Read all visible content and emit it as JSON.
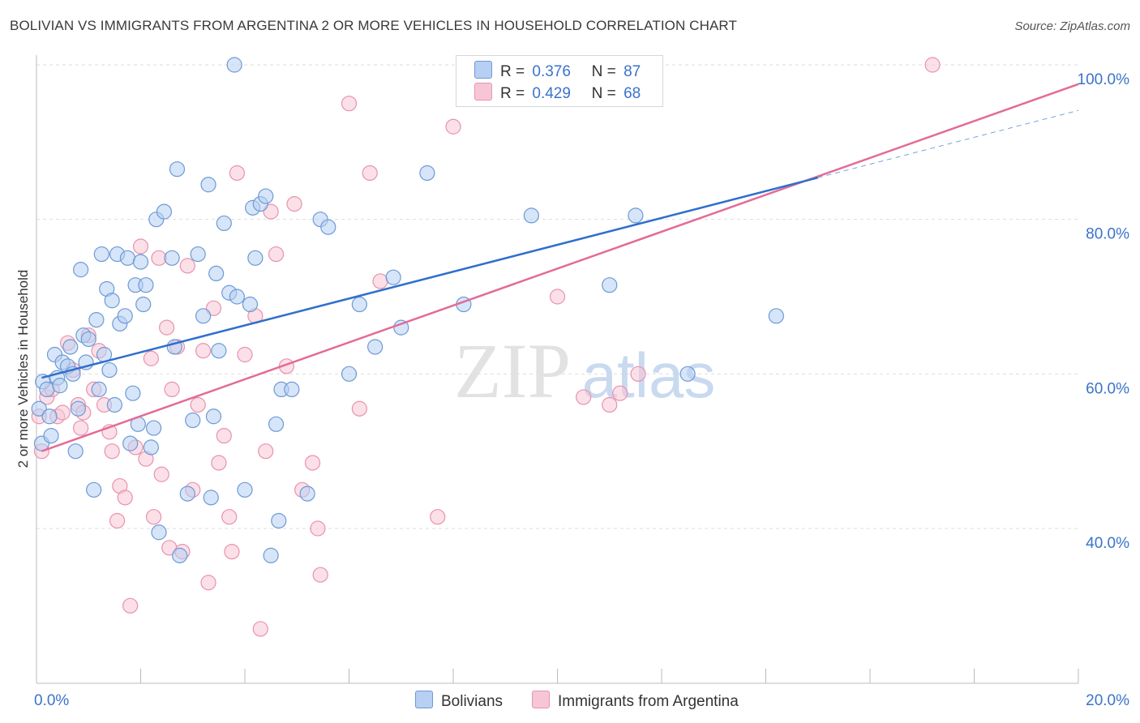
{
  "title": "BOLIVIAN VS IMMIGRANTS FROM ARGENTINA 2 OR MORE VEHICLES IN HOUSEHOLD CORRELATION CHART",
  "source": "Source: ZipAtlas.com",
  "watermark": {
    "zip": "ZIP",
    "atlas": "atlas"
  },
  "legend": {
    "r_label": "R =",
    "n_label": "N =",
    "bolivians": {
      "r": "0.376",
      "n": "87"
    },
    "argentina": {
      "r": "0.429",
      "n": "68"
    }
  },
  "bottom_legend": {
    "bolivians": "Bolivians",
    "argentina": "Immigrants from Argentina"
  },
  "colors": {
    "blue_fill": "#b7cff2",
    "blue_stroke": "#6c9ad6",
    "blue_line": "#2f6fcc",
    "pink_fill": "#f7c6d6",
    "pink_stroke": "#e892ae",
    "pink_line": "#e36b96",
    "tick_label": "#3b73c9",
    "grid": "#dddddd"
  },
  "chart_data": {
    "type": "scatter",
    "title": "BOLIVIAN VS IMMIGRANTS FROM ARGENTINA 2 OR MORE VEHICLES IN HOUSEHOLD CORRELATION CHART",
    "xlabel": "",
    "ylabel": "2 or more Vehicles in Household",
    "xlim": [
      0,
      20
    ],
    "ylim": [
      20,
      101
    ],
    "x_tick_labels": [
      {
        "x": 0,
        "label": "0.0%"
      },
      {
        "x": 20,
        "label": "20.0%"
      }
    ],
    "y_tick_labels": [
      {
        "y": 100,
        "label": "100.0%"
      },
      {
        "y": 80,
        "label": "80.0%"
      },
      {
        "y": 60,
        "label": "60.0%"
      },
      {
        "y": 40,
        "label": "40.0%"
      }
    ],
    "y_gridlines": [
      40,
      60,
      80,
      100
    ],
    "grid": true,
    "legend_position": "top-center",
    "series": [
      {
        "name": "Bolivians",
        "color": "#6c9ad6",
        "trend": {
          "x0": 0.1,
          "y0": 59.5,
          "x1": 15.0,
          "y1": 85.4,
          "dashed_to_x": 20,
          "dashed_to_y": 94.1
        },
        "points": [
          [
            0.05,
            55.5
          ],
          [
            0.1,
            51.0
          ],
          [
            0.12,
            59.0
          ],
          [
            0.2,
            58.0
          ],
          [
            0.25,
            54.5
          ],
          [
            0.28,
            52.0
          ],
          [
            0.35,
            62.5
          ],
          [
            0.4,
            59.5
          ],
          [
            0.45,
            58.5
          ],
          [
            0.5,
            61.5
          ],
          [
            0.6,
            61.0
          ],
          [
            0.65,
            63.5
          ],
          [
            0.7,
            60.0
          ],
          [
            0.75,
            50.0
          ],
          [
            0.8,
            55.5
          ],
          [
            0.85,
            73.5
          ],
          [
            0.9,
            65.0
          ],
          [
            0.95,
            61.5
          ],
          [
            1.0,
            64.5
          ],
          [
            1.1,
            45.0
          ],
          [
            1.15,
            67.0
          ],
          [
            1.2,
            58.0
          ],
          [
            1.25,
            75.5
          ],
          [
            1.3,
            62.5
          ],
          [
            1.35,
            71.0
          ],
          [
            1.4,
            60.5
          ],
          [
            1.45,
            69.5
          ],
          [
            1.5,
            56.0
          ],
          [
            1.55,
            75.5
          ],
          [
            1.6,
            66.5
          ],
          [
            1.7,
            67.5
          ],
          [
            1.75,
            75.0
          ],
          [
            1.8,
            51.0
          ],
          [
            1.85,
            57.5
          ],
          [
            1.9,
            71.5
          ],
          [
            1.95,
            53.5
          ],
          [
            2.0,
            74.5
          ],
          [
            2.05,
            69.0
          ],
          [
            2.1,
            71.5
          ],
          [
            2.2,
            50.5
          ],
          [
            2.25,
            53.0
          ],
          [
            2.3,
            80.0
          ],
          [
            2.35,
            39.5
          ],
          [
            2.45,
            81.0
          ],
          [
            2.6,
            75.0
          ],
          [
            2.65,
            63.5
          ],
          [
            2.7,
            86.5
          ],
          [
            2.75,
            36.5
          ],
          [
            2.9,
            44.5
          ],
          [
            3.0,
            54.0
          ],
          [
            3.1,
            75.5
          ],
          [
            3.2,
            67.5
          ],
          [
            3.3,
            84.5
          ],
          [
            3.35,
            44.0
          ],
          [
            3.4,
            54.5
          ],
          [
            3.45,
            73.0
          ],
          [
            3.5,
            63.0
          ],
          [
            3.6,
            79.5
          ],
          [
            3.7,
            70.5
          ],
          [
            3.8,
            100.0
          ],
          [
            3.85,
            70.0
          ],
          [
            4.0,
            45.0
          ],
          [
            4.1,
            69.0
          ],
          [
            4.15,
            81.5
          ],
          [
            4.2,
            75.0
          ],
          [
            4.3,
            82.0
          ],
          [
            4.4,
            83.0
          ],
          [
            4.5,
            36.5
          ],
          [
            4.6,
            53.5
          ],
          [
            4.65,
            41.0
          ],
          [
            4.7,
            58.0
          ],
          [
            4.9,
            58.0
          ],
          [
            5.2,
            44.5
          ],
          [
            5.45,
            80.0
          ],
          [
            5.6,
            79.0
          ],
          [
            6.0,
            60.0
          ],
          [
            6.2,
            69.0
          ],
          [
            6.5,
            63.5
          ],
          [
            6.85,
            72.5
          ],
          [
            7.0,
            66.0
          ],
          [
            7.5,
            86.0
          ],
          [
            8.2,
            69.0
          ],
          [
            9.5,
            80.5
          ],
          [
            11.0,
            71.5
          ],
          [
            11.5,
            80.5
          ],
          [
            12.5,
            60.0
          ],
          [
            14.2,
            67.5
          ]
        ]
      },
      {
        "name": "Immigrants from Argentina",
        "color": "#e892ae",
        "trend": {
          "x0": 0.1,
          "y0": 50.0,
          "x1": 20,
          "y1": 97.5
        },
        "points": [
          [
            0.05,
            54.5
          ],
          [
            0.1,
            50.0
          ],
          [
            0.2,
            57.0
          ],
          [
            0.3,
            58.0
          ],
          [
            0.4,
            54.5
          ],
          [
            0.5,
            55.0
          ],
          [
            0.6,
            64.0
          ],
          [
            0.7,
            60.5
          ],
          [
            0.8,
            56.0
          ],
          [
            0.85,
            53.0
          ],
          [
            0.9,
            55.0
          ],
          [
            1.0,
            65.0
          ],
          [
            1.1,
            58.0
          ],
          [
            1.2,
            63.0
          ],
          [
            1.3,
            56.0
          ],
          [
            1.4,
            52.5
          ],
          [
            1.45,
            50.0
          ],
          [
            1.55,
            41.0
          ],
          [
            1.6,
            45.5
          ],
          [
            1.7,
            44.0
          ],
          [
            1.8,
            30.0
          ],
          [
            1.9,
            50.5
          ],
          [
            2.0,
            76.5
          ],
          [
            2.1,
            49.0
          ],
          [
            2.2,
            62.0
          ],
          [
            2.25,
            41.5
          ],
          [
            2.35,
            75.0
          ],
          [
            2.4,
            47.0
          ],
          [
            2.5,
            66.0
          ],
          [
            2.55,
            37.5
          ],
          [
            2.6,
            58.0
          ],
          [
            2.7,
            63.5
          ],
          [
            2.8,
            37.0
          ],
          [
            2.9,
            74.0
          ],
          [
            3.0,
            45.0
          ],
          [
            3.1,
            56.0
          ],
          [
            3.2,
            63.0
          ],
          [
            3.3,
            33.0
          ],
          [
            3.4,
            68.5
          ],
          [
            3.5,
            48.5
          ],
          [
            3.6,
            52.0
          ],
          [
            3.7,
            41.5
          ],
          [
            3.75,
            37.0
          ],
          [
            3.85,
            86.0
          ],
          [
            4.0,
            62.5
          ],
          [
            4.2,
            67.5
          ],
          [
            4.3,
            27.0
          ],
          [
            4.4,
            50.0
          ],
          [
            4.5,
            81.0
          ],
          [
            4.6,
            75.5
          ],
          [
            4.8,
            61.0
          ],
          [
            4.95,
            82.0
          ],
          [
            5.1,
            45.0
          ],
          [
            5.3,
            48.5
          ],
          [
            5.4,
            40.0
          ],
          [
            5.45,
            34.0
          ],
          [
            6.0,
            95.0
          ],
          [
            6.2,
            55.5
          ],
          [
            6.4,
            86.0
          ],
          [
            6.6,
            72.0
          ],
          [
            7.7,
            41.5
          ],
          [
            8.0,
            92.0
          ],
          [
            10.0,
            70.0
          ],
          [
            10.5,
            57.0
          ],
          [
            11.0,
            56.0
          ],
          [
            11.2,
            57.5
          ],
          [
            11.55,
            60.0
          ],
          [
            17.2,
            100.0
          ]
        ]
      }
    ]
  }
}
